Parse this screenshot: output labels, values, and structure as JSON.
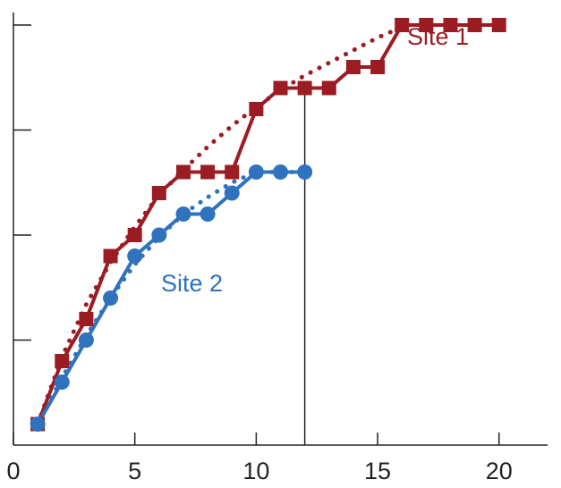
{
  "chart_data": {
    "type": "line",
    "title": "",
    "xlabel": "",
    "ylabel": "",
    "xlim": [
      0,
      22
    ],
    "ylim": [
      0,
      20
    ],
    "x_ticks": [
      0,
      5,
      10,
      15,
      20
    ],
    "x_tick_labels": [
      "0",
      "5",
      "10",
      "15",
      "20"
    ],
    "y_ticks": [
      5,
      10,
      15,
      20
    ],
    "grid": false,
    "reference_line": {
      "x": 12,
      "y_from": 0,
      "y_to": 17
    },
    "series": [
      {
        "name": "Site 1",
        "color": "#9b1c22",
        "marker": "square",
        "line_style": "solid",
        "x": [
          1,
          2,
          3,
          4,
          5,
          6,
          7,
          8,
          9,
          10,
          11,
          12,
          13,
          14,
          15,
          16,
          17,
          18,
          19,
          20
        ],
        "y": [
          1,
          4,
          6,
          9,
          10,
          12,
          13,
          13,
          13,
          16,
          17,
          17,
          17,
          18,
          18,
          20,
          20,
          20,
          20,
          20
        ]
      },
      {
        "name": "Site 2",
        "color": "#2f72bd",
        "marker": "circle",
        "line_style": "solid",
        "x": [
          1,
          2,
          3,
          4,
          5,
          6,
          7,
          8,
          9,
          10,
          11,
          12
        ],
        "y": [
          1,
          3,
          5,
          7,
          9,
          10,
          11,
          11,
          12,
          13,
          13,
          13
        ]
      }
    ],
    "fits": [
      {
        "series": "Site 1",
        "color": "#9b1c22",
        "line_style": "dotted",
        "x": [
          1,
          2,
          3,
          4,
          5,
          6,
          7,
          8,
          9,
          10,
          11,
          12,
          13,
          14,
          15,
          16
        ],
        "y": [
          1,
          4.2,
          6.7,
          8.7,
          10.4,
          11.9,
          13.1,
          14.2,
          15.2,
          16.1,
          16.9,
          17.6,
          18.2,
          18.8,
          19.4,
          19.9
        ]
      },
      {
        "series": "Site 2",
        "color": "#2f72bd",
        "line_style": "dotted",
        "x": [
          1,
          2,
          3,
          4,
          5,
          6,
          7,
          8,
          9,
          10,
          11,
          12
        ],
        "y": [
          1,
          3.2,
          5.2,
          7,
          8.6,
          9.9,
          11,
          11.8,
          12.5,
          13,
          13,
          13
        ]
      }
    ]
  }
}
